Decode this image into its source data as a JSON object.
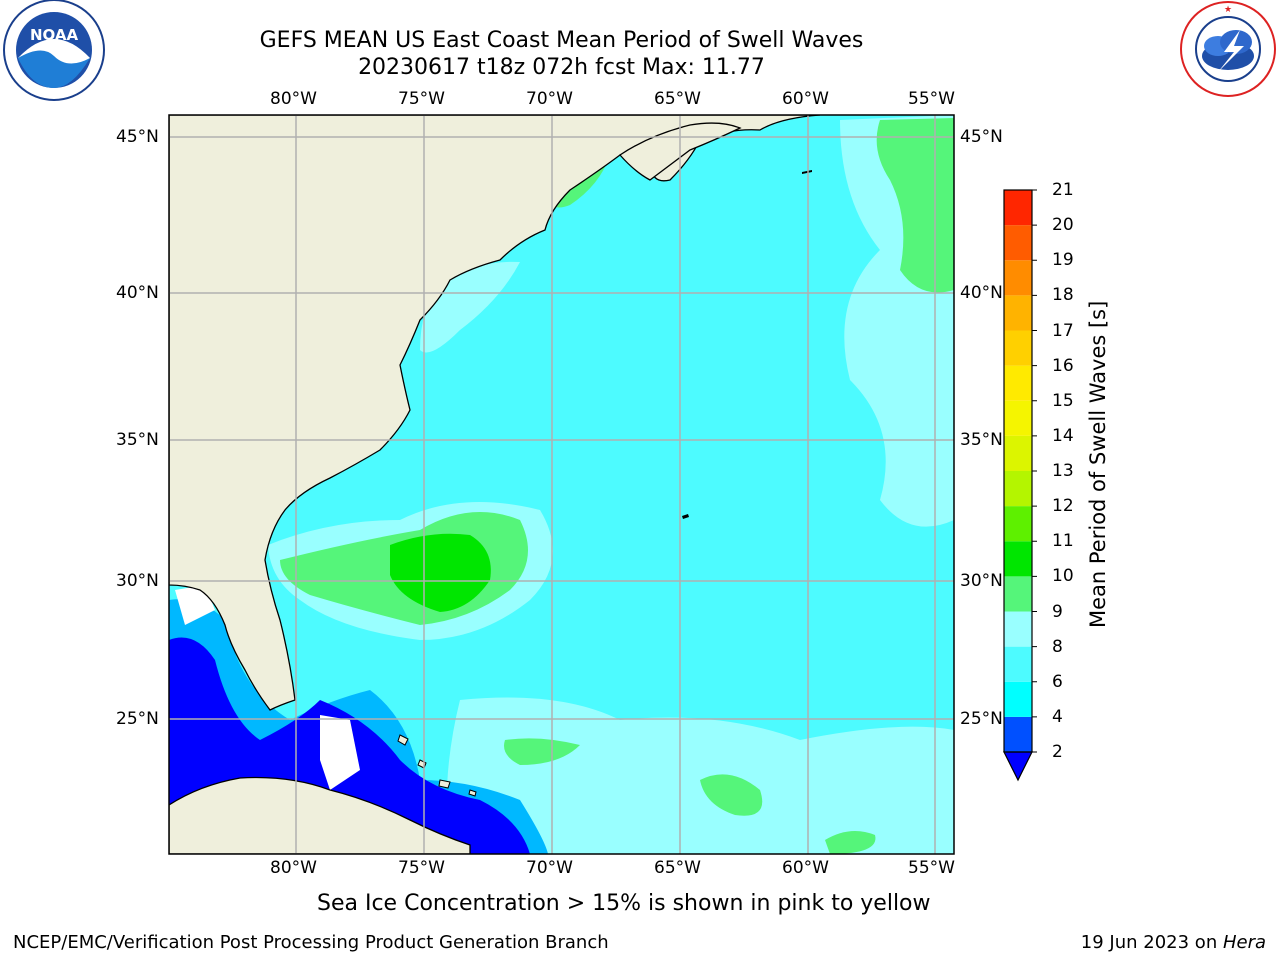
{
  "header": {
    "title_line1": "GEFS MEAN US East Coast Mean Period of Swell Waves",
    "title_line2": "20230617 t18z 072h fcst   Max: 11.77"
  },
  "logos": {
    "noaa": {
      "icon": "noaa-logo",
      "text": "NOAA",
      "ring_text": "NATIONAL OCEANIC AND ATMOSPHERIC ADMINISTRATION  U.S. DEPARTMENT OF COMMERCE"
    },
    "nws": {
      "icon": "nws-logo",
      "ring_text": "NATIONAL WEATHER SERVICE"
    }
  },
  "map": {
    "lon_labels": [
      "80°W",
      "75°W",
      "70°W",
      "65°W",
      "60°W",
      "55°W"
    ],
    "lat_labels": [
      "45°N",
      "40°N",
      "35°N",
      "30°N",
      "25°N"
    ],
    "colors": {
      "land": "#efefdc",
      "ocean_base": "#4dfbff",
      "gridline": "#b0b0b0"
    }
  },
  "colorbar": {
    "title": "Mean Period of Swell Waves [s]",
    "levels": [
      "2",
      "4",
      "6",
      "8",
      "9",
      "10",
      "11",
      "12",
      "13",
      "14",
      "15",
      "16",
      "17",
      "18",
      "19",
      "20",
      "21"
    ],
    "colors": [
      "#0050ff",
      "#00ffff",
      "#4dfbff",
      "#99ffff",
      "#55f57a",
      "#00e600",
      "#5ef000",
      "#b4f500",
      "#dcf500",
      "#f5f500",
      "#ffea00",
      "#ffd000",
      "#ffb300",
      "#ff8c00",
      "#ff5c00",
      "#ff2600"
    ],
    "under_color": "#0000ff"
  },
  "note": "Sea Ice Concentration > 15% is shown in pink to yellow",
  "footer": {
    "left": "NCEP/EMC/Verification Post Processing Product Generation Branch",
    "date": "19 Jun 2023 on ",
    "machine": "Hera"
  }
}
